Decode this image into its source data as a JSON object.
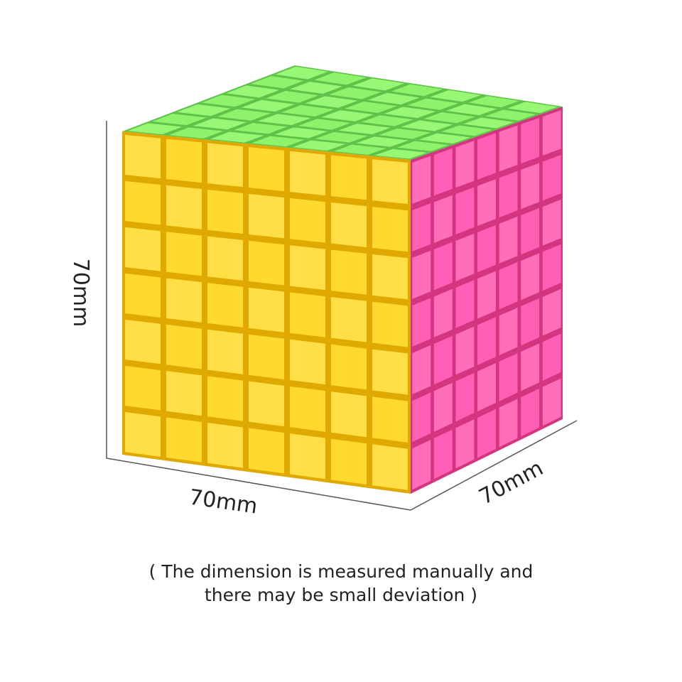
{
  "dimensions": {
    "height": "70mm",
    "width": "70mm",
    "depth": "70mm"
  },
  "note": {
    "line1": "( The dimension is measured manually and",
    "line2": "there may be small deviation )"
  }
}
